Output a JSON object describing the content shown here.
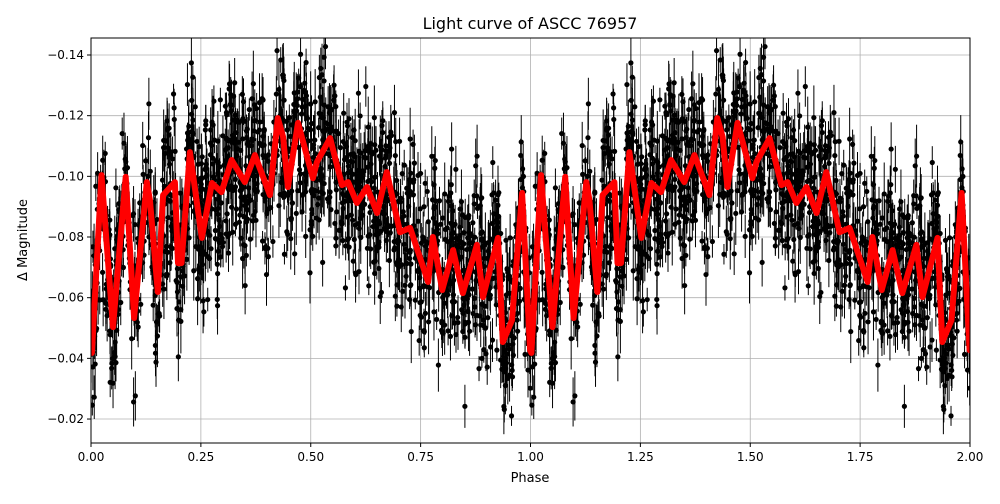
{
  "chart_data": {
    "type": "scatter",
    "title": "Light curve of ASCC 76957",
    "xlabel": "Phase",
    "ylabel": "Δ Magnitude",
    "xlim": [
      0,
      2
    ],
    "ylim": [
      -0.1456,
      -0.0121
    ],
    "y_inverted": true,
    "grid": true,
    "x_ticks": [
      "0.00",
      "0.25",
      "0.50",
      "0.75",
      "1.00",
      "1.25",
      "1.50",
      "1.75",
      "2.00"
    ],
    "x_tick_values": [
      0,
      0.25,
      0.5,
      0.75,
      1,
      1.25,
      1.5,
      1.75,
      2
    ],
    "y_ticks": [
      "−0.14",
      "−0.12",
      "−0.10",
      "−0.08",
      "−0.06",
      "−0.04",
      "−0.02"
    ],
    "y_tick_values": [
      -0.14,
      -0.12,
      -0.1,
      -0.08,
      -0.06,
      -0.04,
      -0.02
    ],
    "colors": {
      "observations": "#000000",
      "model": "#ff0000",
      "grid": "#b0b0b0"
    },
    "series": [
      {
        "kind": "observations-with-errorbars",
        "period_in_phase": 1,
        "color": "#000000"
      },
      {
        "kind": "binned-curve",
        "color": "#ff0000",
        "phase": [
          0.002,
          0.024,
          0.05,
          0.079,
          0.098,
          0.127,
          0.134,
          0.152,
          0.164,
          0.191,
          0.198,
          0.206,
          0.225,
          0.252,
          0.275,
          0.297,
          0.32,
          0.35,
          0.373,
          0.407,
          0.425,
          0.437,
          0.448,
          0.471,
          0.505,
          0.514,
          0.544,
          0.571,
          0.585,
          0.605,
          0.628,
          0.651,
          0.673,
          0.703,
          0.726,
          0.767,
          0.778,
          0.799,
          0.824,
          0.846,
          0.878,
          0.892,
          0.926,
          0.937,
          0.958,
          0.981,
          0.999
        ],
        "magnitude": [
          -0.0418,
          -0.1004,
          -0.0503,
          -0.0998,
          -0.0533,
          -0.0981,
          -0.0922,
          -0.0619,
          -0.0938,
          -0.0981,
          -0.0714,
          -0.0714,
          -0.108,
          -0.0797,
          -0.0978,
          -0.0948,
          -0.1054,
          -0.0981,
          -0.107,
          -0.0938,
          -0.1192,
          -0.113,
          -0.0965,
          -0.1176,
          -0.0994,
          -0.1047,
          -0.1126,
          -0.0971,
          -0.0981,
          -0.0912,
          -0.0965,
          -0.0879,
          -0.1014,
          -0.0816,
          -0.083,
          -0.0652,
          -0.08,
          -0.0625,
          -0.0757,
          -0.0615,
          -0.0774,
          -0.0602,
          -0.0797,
          -0.0454,
          -0.0526,
          -0.0945,
          -0.0427
        ],
        "repeats_over_phase": [
          0,
          1
        ]
      }
    ]
  }
}
